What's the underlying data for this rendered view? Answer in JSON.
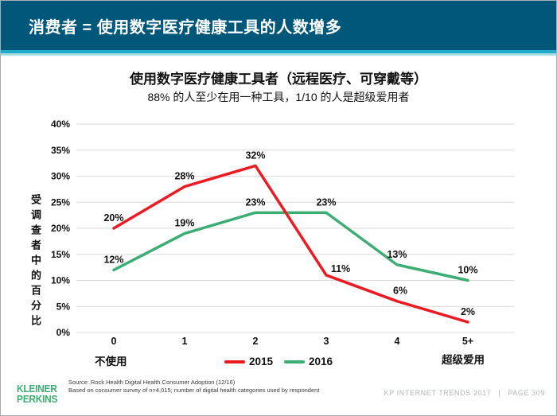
{
  "header": {
    "title": "消费者 = 使用数字医疗健康工具的人数增多"
  },
  "chart": {
    "title": "使用数字医疗健康工具者（远程医疗、可穿戴等）",
    "subtitle": "88% 的人至少在用一种工具，1/10 的人是超级爱用者",
    "y_axis_title": "受调查者中的百分比",
    "x_left_note": "不使用",
    "x_right_note": "超级爱用"
  },
  "chart_data": {
    "type": "line",
    "title": "使用数字医疗健康工具者（远程医疗、可穿戴等）",
    "subtitle": "88% 的人至少在用一种工具，1/10 的人是超级爱用者",
    "categories": [
      "0",
      "1",
      "2",
      "3",
      "4",
      "5+"
    ],
    "series": [
      {
        "name": "2015",
        "color": "#EC1B23",
        "values": [
          20,
          28,
          32,
          11,
          6,
          2
        ]
      },
      {
        "name": "2016",
        "color": "#3CAE73",
        "values": [
          12,
          19,
          23,
          23,
          13,
          10
        ]
      }
    ],
    "ylabel": "受调查者中的百分比",
    "yticks": [
      0,
      5,
      10,
      15,
      20,
      25,
      30,
      35,
      40
    ],
    "ylim": [
      0,
      40
    ],
    "grid": true,
    "data_labels": true,
    "legend_position": "bottom-center"
  },
  "footer": {
    "logo_line1": "KLEINER",
    "logo_line2": "PERKINS",
    "source_line1": "Source: Rock Health Digital Health Consumer Adoption (12/16)",
    "source_line2": "Based on consumer survey of n=4,015; number of digital health categories used by respondent",
    "deck": "KP INTERNET TRENDS 2017",
    "separator": "|",
    "page": "PAGE 309"
  },
  "colors": {
    "header_bg": "#01577A",
    "accent": "#1FACCB",
    "accent_light": "#A9DEE9",
    "grid": "#D9D9D9",
    "series_2015": "#EC1B23",
    "series_2016": "#3CAE73",
    "logo_green": "#3FAE73",
    "page_text": "#AEB5BC"
  }
}
